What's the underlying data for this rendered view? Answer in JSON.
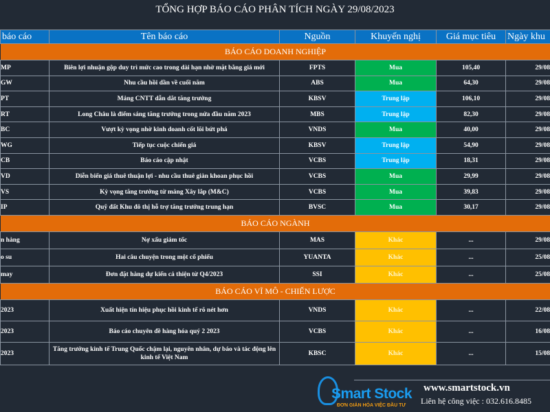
{
  "title": "TỔNG HỢP BÁO CÁO PHÂN TÍCH NGÀY 29/08/2023",
  "headers": [
    "báo cáo",
    "Tên báo cáo",
    "Nguồn",
    "Khuyến nghị",
    "Giá mục tiêu",
    "Ngày khu"
  ],
  "colors": {
    "background": "#222a35",
    "header": "#0a72c4",
    "section": "#e36c09",
    "mua": "#00b050",
    "trung_lap": "#00b0f0",
    "khac": "#ffc000"
  },
  "sections": [
    {
      "title": "BÁO CÁO DOANH NGHIỆP",
      "rows": [
        [
          "MP",
          "Biên lợi nhuận gộp duy trì mức cao trong dài hạn nhờ mặt bằng giá mới",
          "FPTS",
          "Mua",
          "105,40",
          "29/08"
        ],
        [
          "GW",
          "Nhu cầu hồi dần về cuối năm",
          "ABS",
          "Mua",
          "64,30",
          "29/08"
        ],
        [
          "PT",
          "Mảng CNTT dẫn dắt tăng trưởng",
          "KBSV",
          "Trung lập",
          "106,10",
          "29/08"
        ],
        [
          "RT",
          "Long Châu là điểm sáng tăng trưởng trong nửa đầu năm 2023",
          "MBS",
          "Trung lập",
          "82,30",
          "29/08"
        ],
        [
          "BC",
          "Vượt kỳ vọng nhờ kinh doanh cốt lõi bứt phá",
          "VNDS",
          "Mua",
          "40,00",
          "29/08"
        ],
        [
          "WG",
          "Tiếp tục cuộc chiến giá",
          "KBSV",
          "Trung lập",
          "54,90",
          "29/08"
        ],
        [
          "CB",
          "Báo cáo cập nhật",
          "VCBS",
          "Trung lập",
          "18,31",
          "29/08"
        ],
        [
          "VD",
          "Diễn biến giá thuê thuận lợi - nhu cầu thuê giàn khoan phục hồi",
          "VCBS",
          "Mua",
          "29,99",
          "29/08"
        ],
        [
          "VS",
          "Kỳ vọng tăng trưởng từ mảng Xây lắp (M&C)",
          "VCBS",
          "Mua",
          "39,83",
          "29/08"
        ],
        [
          "IP",
          "Quỹ đất Khu đô thị hỗ trợ tăng trưởng trung hạn",
          "BVSC",
          "Mua",
          "30,17",
          "29/08"
        ]
      ]
    },
    {
      "title": "BÁO CÁO NGÀNH",
      "rows": [
        [
          "n hàng",
          "Nợ xấu giảm tốc",
          "MAS",
          "Khác",
          "...",
          "29/08"
        ],
        [
          "o su",
          "Hai câu chuyện trong một cổ phiếu",
          "YUANTA",
          "Khác",
          "...",
          "25/08"
        ],
        [
          " may",
          "Đơn đặt hàng dự kiến cả thiện từ Q4/2023",
          "SSI",
          "Khác",
          "...",
          "25/08"
        ]
      ]
    },
    {
      "title": "BÁO CÁO VĨ MÔ - CHIẾN LƯỢC",
      "rows": [
        [
          "2023",
          "Xuất hiện tín hiệu phục hồi kinh tế rõ nét hơn",
          "VNDS",
          "Khác",
          "...",
          "22/08"
        ],
        [
          "2023",
          "Báo cáo chuyên đề hàng hóa quý 2 2023",
          "VCBS",
          "Khác",
          "...",
          "16/08"
        ],
        [
          "2023",
          "Tăng trưởng kinh tế Trung Quốc chậm lại, nguyên nhân, dự báo và tác động lên kinh tế Việt Nam",
          "KBSC",
          "Khác",
          "...",
          "15/08"
        ]
      ]
    }
  ],
  "footer": {
    "logo_text": "Smart Stock",
    "logo_tagline": "ĐƠN GIẢN HÓA VIỆC ĐẦU TƯ",
    "website": "www.smartstock.vn",
    "contact": "Liên hệ công việc : 032.616.8485"
  }
}
